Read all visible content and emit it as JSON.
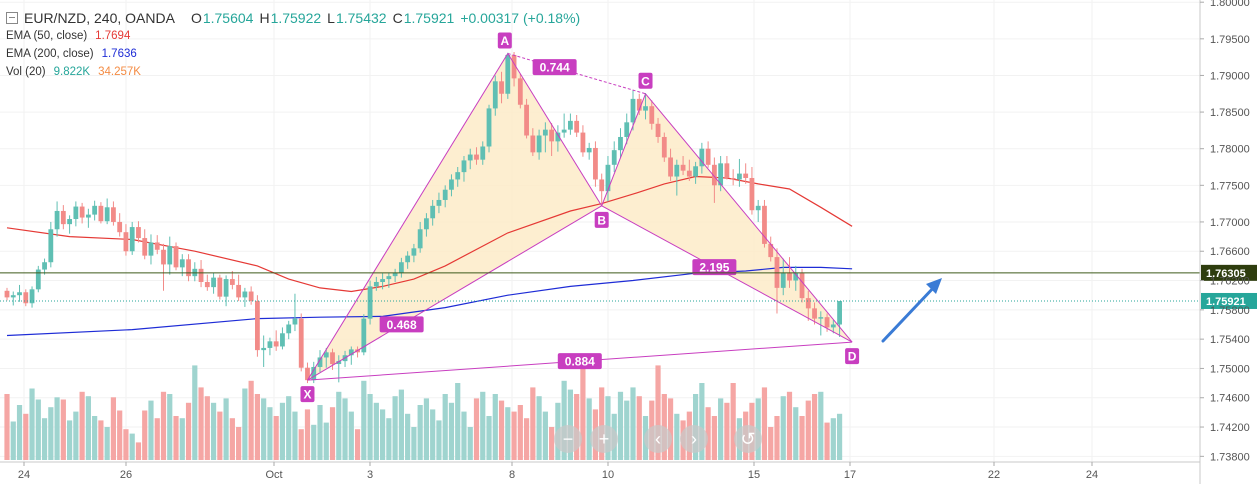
{
  "header": {
    "symbol": "EUR/NZD, 240, OANDA",
    "o_label": "O",
    "o_value": "1.75604",
    "h_label": "H",
    "h_value": "1.75922",
    "l_label": "L",
    "l_value": "1.75432",
    "c_label": "C",
    "c_value": "1.75921",
    "change": "+0.00317 (+0.18%)"
  },
  "indicators": [
    {
      "label": "EMA (50, close)",
      "value": "1.7694",
      "color": "#e53935"
    },
    {
      "label": "EMA (200, close)",
      "value": "1.7636",
      "color": "#1e2cd6"
    },
    {
      "label": "Vol (20)",
      "value": "9.822K",
      "value2": "34.257K",
      "color": "#26a69a",
      "color2": "#f48c44"
    }
  ],
  "controls": [
    "−",
    "+",
    "‹",
    "›",
    "↺"
  ],
  "colors": {
    "up": "#26a69a",
    "down": "#ef5350",
    "pattern": "#c83ec0",
    "pattern_fill": "#fdebc8",
    "ema50": "#e53935",
    "ema200": "#1e2cd6",
    "arrow": "#3a7bd5",
    "hline": "#3d5a1a"
  },
  "chart_data": {
    "type": "candlestick",
    "symbol": "EUR/NZD",
    "timeframe": "240",
    "x_ticks": [
      "24",
      "26",
      "Oct",
      "3",
      "8",
      "10",
      "15",
      "17",
      "22",
      "24"
    ],
    "y_ticks": [
      "1.80000",
      "1.79500",
      "1.79000",
      "1.78500",
      "1.78000",
      "1.77500",
      "1.77000",
      "1.76600",
      "1.76200",
      "1.75800",
      "1.75400",
      "1.75000",
      "1.74600",
      "1.74200",
      "1.73800"
    ],
    "ylim": [
      1.738,
      1.8
    ],
    "price_labels": [
      {
        "value": 1.76305,
        "text": "1.76305",
        "style": "line"
      },
      {
        "value": 1.75921,
        "text": "1.75921",
        "style": "current"
      }
    ],
    "harmonic_pattern": {
      "points": [
        {
          "name": "X",
          "bar": 48,
          "price": 1.7484
        },
        {
          "name": "A",
          "bar": 80,
          "price": 1.793
        },
        {
          "name": "B",
          "bar": 95,
          "price": 1.7722
        },
        {
          "name": "C",
          "bar": 102,
          "price": 1.7875
        },
        {
          "name": "D",
          "bar": 135,
          "price": 1.7536
        }
      ],
      "ratios": [
        {
          "text": "0.744",
          "between": "A-C"
        },
        {
          "text": "0.468",
          "between": "X-B"
        },
        {
          "text": "2.195",
          "between": "B-D"
        },
        {
          "text": "0.884",
          "between": "X-D"
        }
      ]
    },
    "ohlc": [
      [
        1.7606,
        1.761,
        1.7593,
        1.7597
      ],
      [
        1.7597,
        1.7605,
        1.7586,
        1.76
      ],
      [
        1.76,
        1.7614,
        1.7591,
        1.7604
      ],
      [
        1.7604,
        1.7608,
        1.7585,
        1.7589
      ],
      [
        1.7589,
        1.7612,
        1.7583,
        1.7608
      ],
      [
        1.7608,
        1.764,
        1.7604,
        1.7635
      ],
      [
        1.7635,
        1.765,
        1.7628,
        1.7645
      ],
      [
        1.7645,
        1.77,
        1.7638,
        1.769
      ],
      [
        1.769,
        1.7728,
        1.768,
        1.7715
      ],
      [
        1.7715,
        1.7723,
        1.769,
        1.7697
      ],
      [
        1.7697,
        1.7709,
        1.7684,
        1.7704
      ],
      [
        1.7704,
        1.7728,
        1.7694,
        1.7721
      ],
      [
        1.7721,
        1.7726,
        1.7698,
        1.7706
      ],
      [
        1.7706,
        1.7718,
        1.7692,
        1.771
      ],
      [
        1.771,
        1.7729,
        1.7702,
        1.7722
      ],
      [
        1.7722,
        1.7727,
        1.7698,
        1.7701
      ],
      [
        1.7701,
        1.7732,
        1.7697,
        1.772
      ],
      [
        1.772,
        1.7728,
        1.7695,
        1.77
      ],
      [
        1.77,
        1.7712,
        1.768,
        1.7686
      ],
      [
        1.7686,
        1.7697,
        1.7654,
        1.766
      ],
      [
        1.766,
        1.77,
        1.7655,
        1.7693
      ],
      [
        1.7693,
        1.7701,
        1.7672,
        1.7678
      ],
      [
        1.7678,
        1.769,
        1.7649,
        1.7654
      ],
      [
        1.7654,
        1.7683,
        1.7642,
        1.7672
      ],
      [
        1.7672,
        1.7682,
        1.7656,
        1.7662
      ],
      [
        1.7662,
        1.767,
        1.7606,
        1.7642
      ],
      [
        1.7642,
        1.768,
        1.7628,
        1.7667
      ],
      [
        1.7667,
        1.7672,
        1.7634,
        1.7638
      ],
      [
        1.7638,
        1.7656,
        1.7626,
        1.7649
      ],
      [
        1.7649,
        1.7656,
        1.7619,
        1.7626
      ],
      [
        1.7626,
        1.7645,
        1.7619,
        1.7636
      ],
      [
        1.7636,
        1.7648,
        1.7611,
        1.7618
      ],
      [
        1.7618,
        1.7628,
        1.7606,
        1.7611
      ],
      [
        1.7611,
        1.7631,
        1.7602,
        1.7624
      ],
      [
        1.7624,
        1.7628,
        1.7594,
        1.7598
      ],
      [
        1.7598,
        1.7627,
        1.7585,
        1.7622
      ],
      [
        1.7622,
        1.7633,
        1.7608,
        1.7614
      ],
      [
        1.7614,
        1.7628,
        1.7592,
        1.7597
      ],
      [
        1.7597,
        1.761,
        1.7584,
        1.7605
      ],
      [
        1.7605,
        1.7612,
        1.7587,
        1.7592
      ],
      [
        1.7592,
        1.76,
        1.7516,
        1.7525
      ],
      [
        1.7525,
        1.7545,
        1.7502,
        1.7528
      ],
      [
        1.7528,
        1.7542,
        1.7518,
        1.7537
      ],
      [
        1.7537,
        1.7552,
        1.7524,
        1.753
      ],
      [
        1.753,
        1.7556,
        1.7526,
        1.7548
      ],
      [
        1.7548,
        1.7565,
        1.754,
        1.756
      ],
      [
        1.756,
        1.7602,
        1.7551,
        1.7568
      ],
      [
        1.7568,
        1.7575,
        1.7496,
        1.7501
      ],
      [
        1.7501,
        1.7508,
        1.748,
        1.7484
      ],
      [
        1.7484,
        1.7509,
        1.748,
        1.7502
      ],
      [
        1.7502,
        1.7525,
        1.7495,
        1.7515
      ],
      [
        1.7515,
        1.7528,
        1.7501,
        1.7522
      ],
      [
        1.7522,
        1.7527,
        1.7498,
        1.7506
      ],
      [
        1.7506,
        1.7518,
        1.7481,
        1.751
      ],
      [
        1.751,
        1.7524,
        1.7502,
        1.7518
      ],
      [
        1.7518,
        1.753,
        1.7505,
        1.7526
      ],
      [
        1.7526,
        1.753,
        1.7515,
        1.7522
      ],
      [
        1.7522,
        1.7574,
        1.7518,
        1.7568
      ],
      [
        1.7568,
        1.762,
        1.756,
        1.7612
      ],
      [
        1.7612,
        1.7625,
        1.7606,
        1.7618
      ],
      [
        1.7618,
        1.763,
        1.7608,
        1.7622
      ],
      [
        1.7622,
        1.763,
        1.761,
        1.7626
      ],
      [
        1.7626,
        1.7636,
        1.7618,
        1.7631
      ],
      [
        1.7631,
        1.7651,
        1.7624,
        1.7645
      ],
      [
        1.7645,
        1.766,
        1.7636,
        1.7654
      ],
      [
        1.7654,
        1.767,
        1.7645,
        1.7664
      ],
      [
        1.7664,
        1.77,
        1.7658,
        1.769
      ],
      [
        1.769,
        1.7712,
        1.768,
        1.7705
      ],
      [
        1.7705,
        1.773,
        1.7695,
        1.7722
      ],
      [
        1.7722,
        1.774,
        1.7712,
        1.773
      ],
      [
        1.773,
        1.775,
        1.772,
        1.7744
      ],
      [
        1.7744,
        1.7765,
        1.7735,
        1.7758
      ],
      [
        1.7758,
        1.7775,
        1.7748,
        1.7768
      ],
      [
        1.7768,
        1.779,
        1.7755,
        1.7784
      ],
      [
        1.7784,
        1.78,
        1.7772,
        1.7792
      ],
      [
        1.7792,
        1.7802,
        1.7778,
        1.7785
      ],
      [
        1.7785,
        1.781,
        1.7778,
        1.7803
      ],
      [
        1.7803,
        1.786,
        1.7795,
        1.7855
      ],
      [
        1.7855,
        1.79,
        1.7845,
        1.7892
      ],
      [
        1.7892,
        1.7905,
        1.7862,
        1.7875
      ],
      [
        1.7875,
        1.7931,
        1.7868,
        1.7928
      ],
      [
        1.7928,
        1.7932,
        1.7885,
        1.7896
      ],
      [
        1.7896,
        1.7902,
        1.7855,
        1.786
      ],
      [
        1.786,
        1.7868,
        1.7814,
        1.7818
      ],
      [
        1.7818,
        1.7828,
        1.779,
        1.7795
      ],
      [
        1.7795,
        1.7826,
        1.7785,
        1.7818
      ],
      [
        1.7818,
        1.7836,
        1.7795,
        1.7826
      ],
      [
        1.7826,
        1.7835,
        1.779,
        1.781
      ],
      [
        1.781,
        1.7832,
        1.7796,
        1.7822
      ],
      [
        1.7822,
        1.7848,
        1.7815,
        1.7826
      ],
      [
        1.7826,
        1.7848,
        1.7819,
        1.7838
      ],
      [
        1.7838,
        1.7846,
        1.7816,
        1.7822
      ],
      [
        1.7822,
        1.7832,
        1.7789,
        1.7795
      ],
      [
        1.7795,
        1.7808,
        1.7785,
        1.7801
      ],
      [
        1.7801,
        1.781,
        1.7748,
        1.7758
      ],
      [
        1.7758,
        1.7766,
        1.7724,
        1.7742
      ],
      [
        1.7742,
        1.779,
        1.7728,
        1.7778
      ],
      [
        1.7778,
        1.781,
        1.7768,
        1.7798
      ],
      [
        1.7798,
        1.7828,
        1.7788,
        1.7816
      ],
      [
        1.7816,
        1.7848,
        1.7806,
        1.7836
      ],
      [
        1.7836,
        1.788,
        1.7825,
        1.7868
      ],
      [
        1.7868,
        1.7875,
        1.7846,
        1.7852
      ],
      [
        1.7852,
        1.7876,
        1.784,
        1.7858
      ],
      [
        1.7858,
        1.7866,
        1.7826,
        1.7834
      ],
      [
        1.7834,
        1.7842,
        1.7808,
        1.7816
      ],
      [
        1.7816,
        1.7822,
        1.7782,
        1.7788
      ],
      [
        1.7788,
        1.78,
        1.7756,
        1.7762
      ],
      [
        1.7762,
        1.7785,
        1.7736,
        1.7778
      ],
      [
        1.7778,
        1.779,
        1.7764,
        1.777
      ],
      [
        1.777,
        1.7785,
        1.7756,
        1.7762
      ],
      [
        1.7762,
        1.7782,
        1.7752,
        1.7776
      ],
      [
        1.7776,
        1.7808,
        1.7766,
        1.78
      ],
      [
        1.78,
        1.781,
        1.7774,
        1.7778
      ],
      [
        1.7778,
        1.7788,
        1.7726,
        1.775
      ],
      [
        1.775,
        1.779,
        1.7742,
        1.778
      ],
      [
        1.778,
        1.779,
        1.7758,
        1.776
      ],
      [
        1.776,
        1.7772,
        1.775,
        1.7758
      ],
      [
        1.7758,
        1.7786,
        1.7748,
        1.7766
      ],
      [
        1.7766,
        1.778,
        1.7752,
        1.776
      ],
      [
        1.776,
        1.7775,
        1.771,
        1.7716
      ],
      [
        1.7716,
        1.773,
        1.77,
        1.7722
      ],
      [
        1.7722,
        1.773,
        1.7665,
        1.767
      ],
      [
        1.767,
        1.768,
        1.7646,
        1.7652
      ],
      [
        1.7652,
        1.7664,
        1.7575,
        1.761
      ],
      [
        1.761,
        1.765,
        1.76,
        1.763
      ],
      [
        1.763,
        1.7652,
        1.761,
        1.762
      ],
      [
        1.762,
        1.764,
        1.7606,
        1.763
      ],
      [
        1.763,
        1.7636,
        1.759,
        1.7596
      ],
      [
        1.7596,
        1.7606,
        1.7565,
        1.7582
      ],
      [
        1.7582,
        1.759,
        1.756,
        1.7568
      ],
      [
        1.7568,
        1.7578,
        1.7545,
        1.757
      ],
      [
        1.757,
        1.7575,
        1.755,
        1.7556
      ],
      [
        1.7556,
        1.7566,
        1.7548,
        1.756
      ],
      [
        1.756,
        1.7592,
        1.7543,
        1.7592
      ]
    ],
    "volume": [
      0.6,
      0.35,
      0.5,
      0.42,
      0.65,
      0.55,
      0.38,
      0.48,
      0.57,
      0.55,
      0.36,
      0.44,
      0.62,
      0.58,
      0.4,
      0.36,
      0.3,
      0.57,
      0.45,
      0.28,
      0.24,
      0.16,
      0.45,
      0.54,
      0.38,
      0.62,
      0.6,
      0.4,
      0.38,
      0.52,
      0.86,
      0.66,
      0.58,
      0.52,
      0.44,
      0.56,
      0.38,
      0.3,
      0.65,
      0.72,
      0.6,
      0.56,
      0.48,
      0.4,
      0.52,
      0.58,
      0.44,
      0.28,
      0.46,
      0.32,
      0.5,
      0.34,
      0.48,
      0.62,
      0.56,
      0.44,
      0.28,
      0.72,
      0.6,
      0.52,
      0.46,
      0.38,
      0.58,
      0.64,
      0.42,
      0.3,
      0.5,
      0.56,
      0.46,
      0.36,
      0.6,
      0.52,
      0.7,
      0.44,
      0.3,
      0.56,
      0.62,
      0.4,
      0.6,
      0.54,
      0.48,
      0.44,
      0.5,
      0.38,
      0.66,
      0.58,
      0.44,
      0.3,
      0.52,
      0.72,
      0.64,
      0.6,
      0.84,
      0.56,
      0.46,
      0.66,
      0.58,
      0.42,
      0.62,
      0.54,
      0.66,
      0.58,
      0.4,
      0.54,
      0.86,
      0.6,
      0.56,
      0.42,
      0.36,
      0.44,
      0.6,
      0.7,
      0.48,
      0.4,
      0.56,
      0.52,
      0.7,
      0.38,
      0.44,
      0.52,
      0.56,
      0.66,
      0.3,
      0.4,
      0.58,
      0.62,
      0.48,
      0.4,
      0.54,
      0.6,
      0.62,
      0.34,
      0.38,
      0.42,
      0.3,
      0.32,
      0.16
    ],
    "ema50": [
      [
        0,
        1.7692
      ],
      [
        10,
        1.768
      ],
      [
        20,
        1.7676
      ],
      [
        30,
        1.766
      ],
      [
        40,
        1.764
      ],
      [
        45,
        1.7622
      ],
      [
        50,
        1.761
      ],
      [
        55,
        1.7605
      ],
      [
        60,
        1.7612
      ],
      [
        65,
        1.7622
      ],
      [
        70,
        1.764
      ],
      [
        80,
        1.7685
      ],
      [
        90,
        1.7715
      ],
      [
        95,
        1.7725
      ],
      [
        100,
        1.7738
      ],
      [
        105,
        1.7752
      ],
      [
        110,
        1.7762
      ],
      [
        115,
        1.776
      ],
      [
        120,
        1.7752
      ],
      [
        125,
        1.7745
      ],
      [
        130,
        1.772
      ],
      [
        135,
        1.7694
      ]
    ],
    "ema200": [
      [
        0,
        1.7545
      ],
      [
        20,
        1.7553
      ],
      [
        40,
        1.7568
      ],
      [
        50,
        1.757
      ],
      [
        60,
        1.7571
      ],
      [
        70,
        1.7583
      ],
      [
        80,
        1.76
      ],
      [
        90,
        1.7612
      ],
      [
        100,
        1.762
      ],
      [
        110,
        1.763
      ],
      [
        118,
        1.7633
      ],
      [
        124,
        1.7638
      ],
      [
        130,
        1.7638
      ],
      [
        135,
        1.7636
      ]
    ]
  }
}
